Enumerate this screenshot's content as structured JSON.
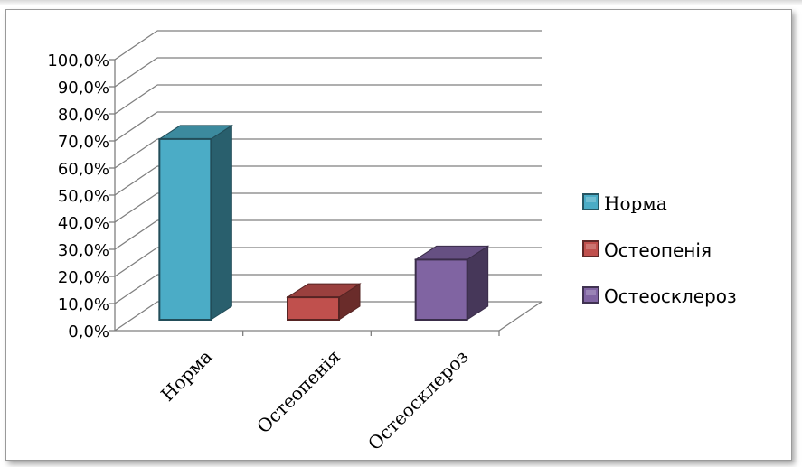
{
  "chart_data": {
    "type": "bar",
    "style": "3d-column",
    "categories": [
      "Норма",
      "Остеопенія",
      "Остеосклероз"
    ],
    "series": [
      {
        "name": "Норма",
        "values": [
          66.7,
          null,
          null
        ],
        "color": "#4bacc6"
      },
      {
        "name": "Остеопенія",
        "values": [
          null,
          8.3,
          null
        ],
        "color": "#c0504d"
      },
      {
        "name": "Остеосклероз",
        "values": [
          null,
          null,
          22.2
        ],
        "color": "#8064a2"
      }
    ],
    "y_ticks": [
      "0,0%",
      "10,0%",
      "20,0%",
      "30,0%",
      "40,0%",
      "50,0%",
      "60,0%",
      "70,0%",
      "80,0%",
      "90,0%",
      "100,0%"
    ],
    "ylim": [
      0,
      100
    ],
    "grid": true,
    "legend_position": "right",
    "title": "",
    "xlabel": "",
    "ylabel": ""
  }
}
